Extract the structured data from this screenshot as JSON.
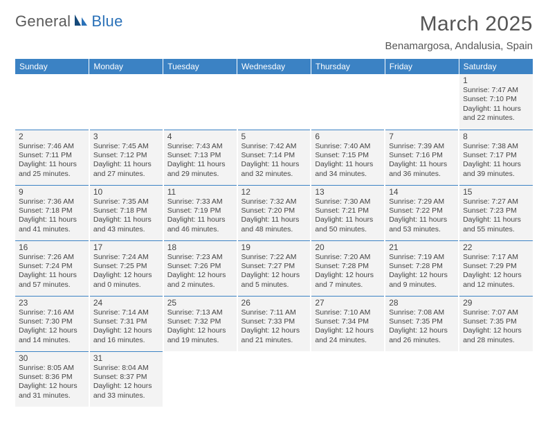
{
  "logo": {
    "text1": "General",
    "text2": "Blue"
  },
  "title": "March 2025",
  "location": "Benamargosa, Andalusia, Spain",
  "colors": {
    "header_bg": "#3b82c4",
    "header_text": "#ffffff",
    "cell_bg": "#f3f3f3",
    "cell_border": "#3b82c4",
    "text": "#444444",
    "logo_blue": "#2a71b8"
  },
  "day_headers": [
    "Sunday",
    "Monday",
    "Tuesday",
    "Wednesday",
    "Thursday",
    "Friday",
    "Saturday"
  ],
  "weeks": [
    [
      null,
      null,
      null,
      null,
      null,
      null,
      {
        "n": "1",
        "sunrise": "7:47 AM",
        "sunset": "7:10 PM",
        "daylight": "11 hours and 22 minutes."
      }
    ],
    [
      {
        "n": "2",
        "sunrise": "7:46 AM",
        "sunset": "7:11 PM",
        "daylight": "11 hours and 25 minutes."
      },
      {
        "n": "3",
        "sunrise": "7:45 AM",
        "sunset": "7:12 PM",
        "daylight": "11 hours and 27 minutes."
      },
      {
        "n": "4",
        "sunrise": "7:43 AM",
        "sunset": "7:13 PM",
        "daylight": "11 hours and 29 minutes."
      },
      {
        "n": "5",
        "sunrise": "7:42 AM",
        "sunset": "7:14 PM",
        "daylight": "11 hours and 32 minutes."
      },
      {
        "n": "6",
        "sunrise": "7:40 AM",
        "sunset": "7:15 PM",
        "daylight": "11 hours and 34 minutes."
      },
      {
        "n": "7",
        "sunrise": "7:39 AM",
        "sunset": "7:16 PM",
        "daylight": "11 hours and 36 minutes."
      },
      {
        "n": "8",
        "sunrise": "7:38 AM",
        "sunset": "7:17 PM",
        "daylight": "11 hours and 39 minutes."
      }
    ],
    [
      {
        "n": "9",
        "sunrise": "7:36 AM",
        "sunset": "7:18 PM",
        "daylight": "11 hours and 41 minutes."
      },
      {
        "n": "10",
        "sunrise": "7:35 AM",
        "sunset": "7:18 PM",
        "daylight": "11 hours and 43 minutes."
      },
      {
        "n": "11",
        "sunrise": "7:33 AM",
        "sunset": "7:19 PM",
        "daylight": "11 hours and 46 minutes."
      },
      {
        "n": "12",
        "sunrise": "7:32 AM",
        "sunset": "7:20 PM",
        "daylight": "11 hours and 48 minutes."
      },
      {
        "n": "13",
        "sunrise": "7:30 AM",
        "sunset": "7:21 PM",
        "daylight": "11 hours and 50 minutes."
      },
      {
        "n": "14",
        "sunrise": "7:29 AM",
        "sunset": "7:22 PM",
        "daylight": "11 hours and 53 minutes."
      },
      {
        "n": "15",
        "sunrise": "7:27 AM",
        "sunset": "7:23 PM",
        "daylight": "11 hours and 55 minutes."
      }
    ],
    [
      {
        "n": "16",
        "sunrise": "7:26 AM",
        "sunset": "7:24 PM",
        "daylight": "11 hours and 57 minutes."
      },
      {
        "n": "17",
        "sunrise": "7:24 AM",
        "sunset": "7:25 PM",
        "daylight": "12 hours and 0 minutes."
      },
      {
        "n": "18",
        "sunrise": "7:23 AM",
        "sunset": "7:26 PM",
        "daylight": "12 hours and 2 minutes."
      },
      {
        "n": "19",
        "sunrise": "7:22 AM",
        "sunset": "7:27 PM",
        "daylight": "12 hours and 5 minutes."
      },
      {
        "n": "20",
        "sunrise": "7:20 AM",
        "sunset": "7:28 PM",
        "daylight": "12 hours and 7 minutes."
      },
      {
        "n": "21",
        "sunrise": "7:19 AM",
        "sunset": "7:28 PM",
        "daylight": "12 hours and 9 minutes."
      },
      {
        "n": "22",
        "sunrise": "7:17 AM",
        "sunset": "7:29 PM",
        "daylight": "12 hours and 12 minutes."
      }
    ],
    [
      {
        "n": "23",
        "sunrise": "7:16 AM",
        "sunset": "7:30 PM",
        "daylight": "12 hours and 14 minutes."
      },
      {
        "n": "24",
        "sunrise": "7:14 AM",
        "sunset": "7:31 PM",
        "daylight": "12 hours and 16 minutes."
      },
      {
        "n": "25",
        "sunrise": "7:13 AM",
        "sunset": "7:32 PM",
        "daylight": "12 hours and 19 minutes."
      },
      {
        "n": "26",
        "sunrise": "7:11 AM",
        "sunset": "7:33 PM",
        "daylight": "12 hours and 21 minutes."
      },
      {
        "n": "27",
        "sunrise": "7:10 AM",
        "sunset": "7:34 PM",
        "daylight": "12 hours and 24 minutes."
      },
      {
        "n": "28",
        "sunrise": "7:08 AM",
        "sunset": "7:35 PM",
        "daylight": "12 hours and 26 minutes."
      },
      {
        "n": "29",
        "sunrise": "7:07 AM",
        "sunset": "7:35 PM",
        "daylight": "12 hours and 28 minutes."
      }
    ],
    [
      {
        "n": "30",
        "sunrise": "8:05 AM",
        "sunset": "8:36 PM",
        "daylight": "12 hours and 31 minutes."
      },
      {
        "n": "31",
        "sunrise": "8:04 AM",
        "sunset": "8:37 PM",
        "daylight": "12 hours and 33 minutes."
      },
      null,
      null,
      null,
      null,
      null
    ]
  ]
}
